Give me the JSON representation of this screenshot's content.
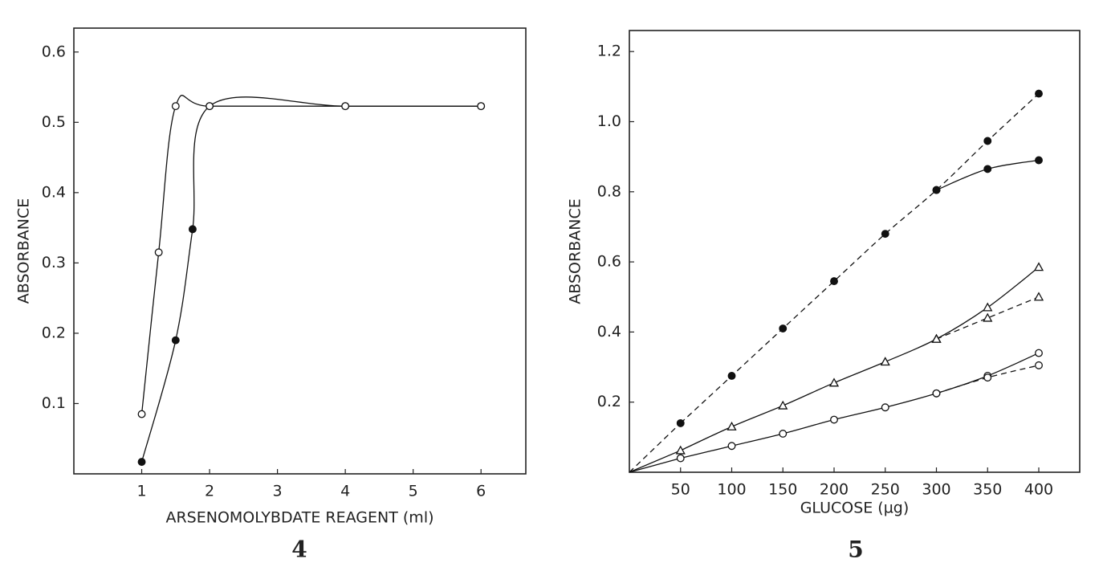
{
  "chart_data": [
    {
      "type": "line",
      "title": "4",
      "x_label": "ARSENOMOLYBDATE REAGENT (ml)",
      "y_label": "ABSORBANCE",
      "xlim": [
        0,
        6.66
      ],
      "xticks": [
        1,
        2,
        3,
        4,
        5,
        6
      ],
      "ylim": [
        0,
        0.634
      ],
      "yticks": [
        0.1,
        0.2,
        0.3,
        0.4,
        0.5,
        0.6
      ],
      "series": [
        {
          "marker": "filled-circle",
          "color": "#111111",
          "dash": "solid",
          "x": [
            1,
            1.5,
            1.75,
            2,
            4,
            6
          ],
          "values": [
            0.017,
            0.19,
            0.348,
            0.523,
            0.523,
            0.523
          ]
        },
        {
          "marker": "open-circle",
          "color": "#111111",
          "dash": "solid",
          "x": [
            1,
            1.25,
            1.5,
            2,
            4,
            6
          ],
          "values": [
            0.085,
            0.315,
            0.523,
            0.523,
            0.523,
            0.523
          ]
        }
      ]
    },
    {
      "type": "line",
      "title": "5",
      "x_label": "GLUCOSE (µg)",
      "y_label": "ABSORBANCE",
      "xlim": [
        0,
        440
      ],
      "xticks": [
        50,
        100,
        150,
        200,
        250,
        300,
        350,
        400
      ],
      "ylim": [
        0,
        1.26
      ],
      "yticks": [
        0.2,
        0.4,
        0.6,
        0.8,
        {
          "value": 1,
          "label": "1.0"
        },
        1.2
      ],
      "series": [
        {
          "marker": "filled-circle",
          "color": "#111111",
          "dash": "dashed",
          "start_at_origin": true,
          "x": [
            50,
            100,
            150,
            200,
            250,
            300,
            350,
            400
          ],
          "values": [
            0.14,
            0.275,
            0.41,
            0.545,
            0.68,
            0.805,
            0.945,
            1.08
          ]
        },
        {
          "marker": "filled-circle",
          "color": "#111111",
          "dash": "solid",
          "x": [
            300,
            350,
            400
          ],
          "values": [
            0.805,
            0.865,
            0.89
          ]
        },
        {
          "marker": "open-triangle",
          "color": "#111111",
          "dash": "solid",
          "start_at_origin": true,
          "x": [
            50,
            100,
            150,
            200,
            250,
            300,
            350,
            400
          ],
          "values": [
            0.062,
            0.13,
            0.19,
            0.255,
            0.315,
            0.38,
            0.47,
            0.585
          ]
        },
        {
          "marker": "open-triangle",
          "color": "#111111",
          "dash": "dashed",
          "x": [
            300,
            350,
            400
          ],
          "values": [
            0.38,
            0.44,
            0.5
          ]
        },
        {
          "marker": "open-circle",
          "color": "#111111",
          "dash": "solid",
          "start_at_origin": true,
          "x": [
            50,
            100,
            150,
            200,
            250,
            300,
            350,
            400
          ],
          "values": [
            0.04,
            0.075,
            0.11,
            0.15,
            0.185,
            0.225,
            0.275,
            0.34
          ]
        },
        {
          "marker": "open-circle",
          "color": "#111111",
          "dash": "dashed",
          "x": [
            300,
            350,
            400
          ],
          "values": [
            0.225,
            0.27,
            0.305
          ]
        }
      ]
    }
  ]
}
